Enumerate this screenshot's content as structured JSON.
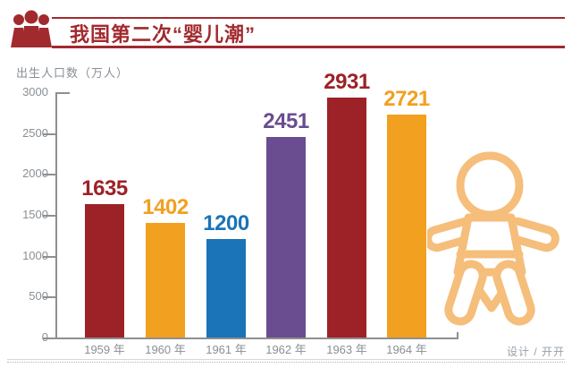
{
  "header": {
    "title": "我国第二次“婴儿潮”",
    "accent_color": "#A12A2E"
  },
  "chart_data": {
    "type": "bar",
    "title": "我国第二次“婴儿潮”",
    "ylabel": "出生人口数（万人）",
    "categories": [
      "1959 年",
      "1960 年",
      "1961 年",
      "1962 年",
      "1963 年",
      "1964 年"
    ],
    "values": [
      1635,
      1402,
      1200,
      2451,
      2931,
      2721
    ],
    "bar_colors": [
      "#9C2227",
      "#F2A01F",
      "#1B74B8",
      "#6A4C90",
      "#9C2227",
      "#F2A01F"
    ],
    "ylim": [
      0,
      3000
    ],
    "yticks": [
      0,
      500,
      1000,
      1500,
      2000,
      2500,
      3000
    ],
    "grid": false,
    "legend": null,
    "value_labels": true
  },
  "footer": {
    "credit": "设计 / 开开"
  },
  "icons": {
    "people_group_color": "#A12A2E",
    "baby_outline_color": "#F5BE7B"
  }
}
